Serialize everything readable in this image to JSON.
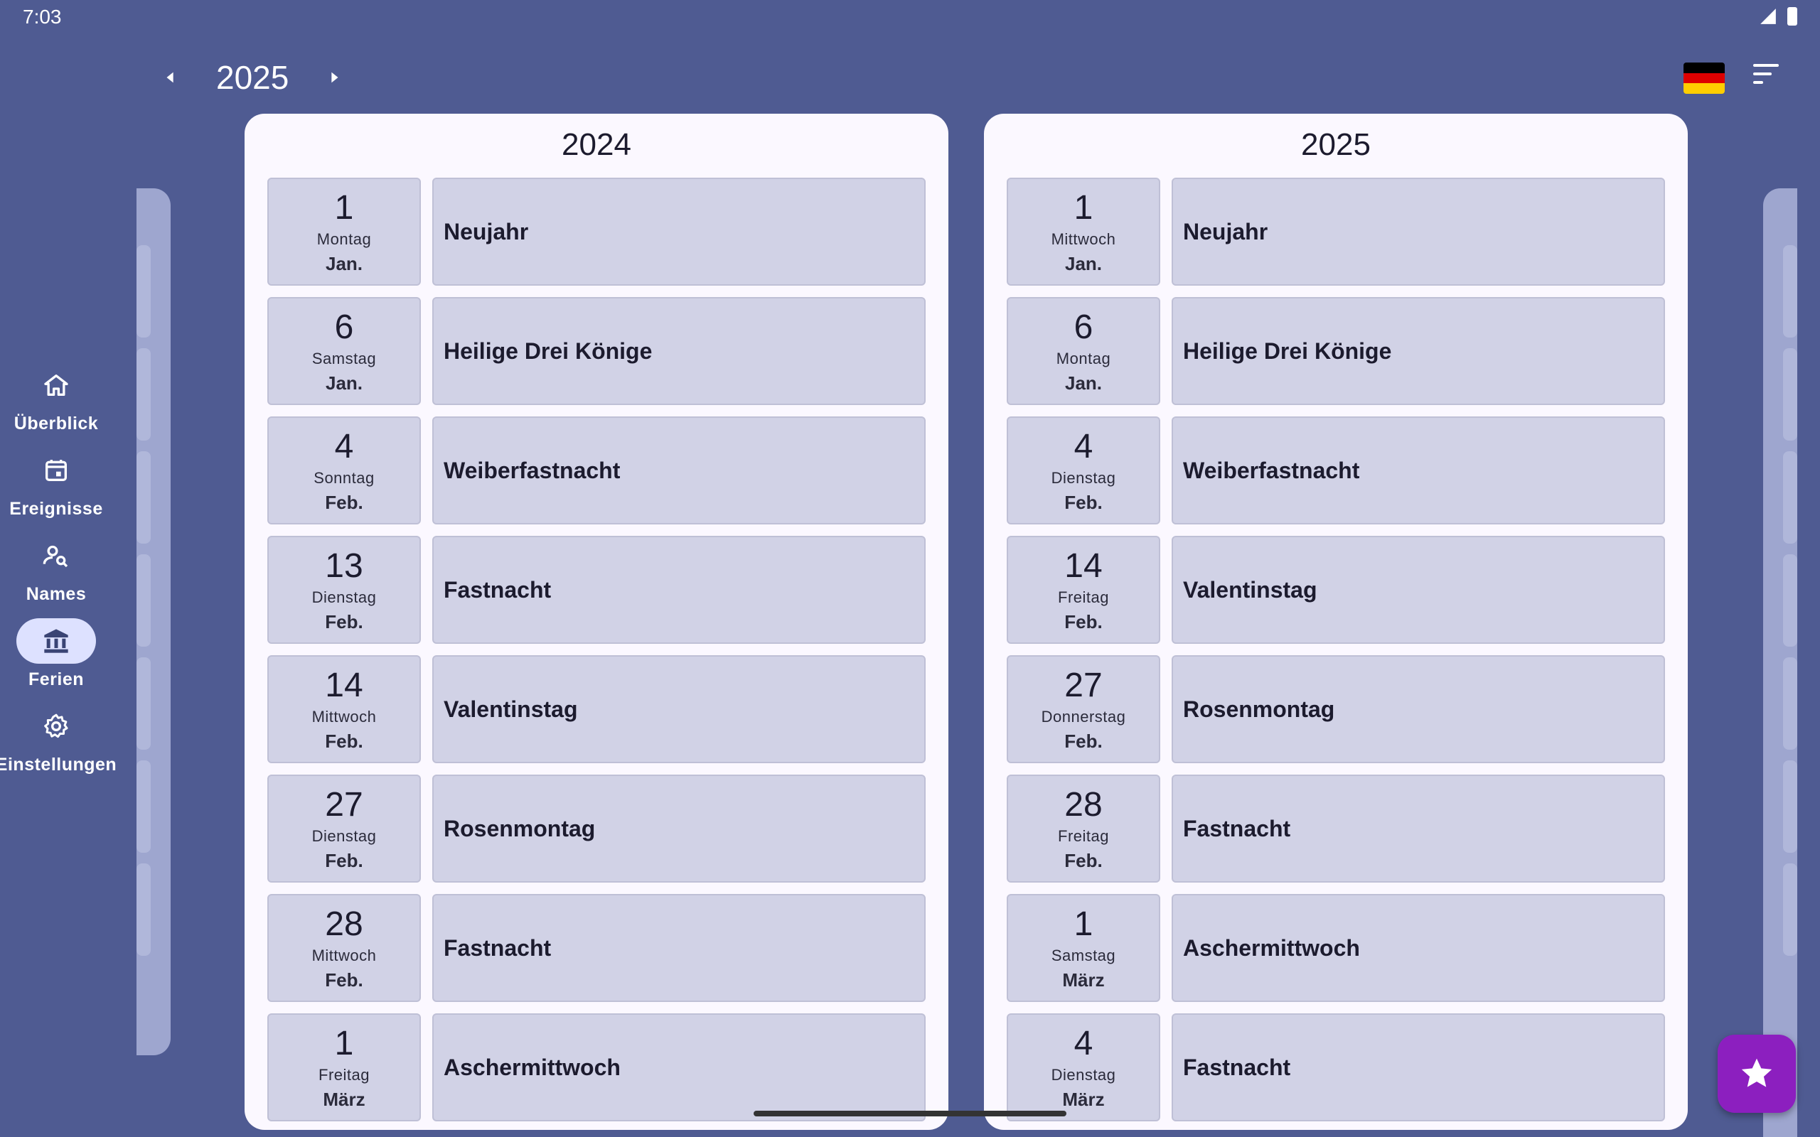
{
  "status_bar": {
    "time": "7:03"
  },
  "header": {
    "year": "2025"
  },
  "nav_rail": {
    "items": [
      {
        "label": "Überblick",
        "icon": "home-icon",
        "active": false
      },
      {
        "label": "Ereignisse",
        "icon": "calendar-icon",
        "active": false
      },
      {
        "label": "Names",
        "icon": "person-search-icon",
        "active": false
      },
      {
        "label": "Ferien",
        "icon": "bank-icon",
        "active": true
      },
      {
        "label": "Einstellungen",
        "icon": "gear-icon",
        "active": false
      }
    ]
  },
  "panels": [
    {
      "title": "2024",
      "rows": [
        {
          "day": "1",
          "weekday": "Montag",
          "month": "Jan.",
          "name": "Neujahr"
        },
        {
          "day": "6",
          "weekday": "Samstag",
          "month": "Jan.",
          "name": "Heilige Drei Könige"
        },
        {
          "day": "4",
          "weekday": "Sonntag",
          "month": "Feb.",
          "name": "Weiberfastnacht"
        },
        {
          "day": "13",
          "weekday": "Dienstag",
          "month": "Feb.",
          "name": "Fastnacht"
        },
        {
          "day": "14",
          "weekday": "Mittwoch",
          "month": "Feb.",
          "name": "Valentinstag"
        },
        {
          "day": "27",
          "weekday": "Dienstag",
          "month": "Feb.",
          "name": "Rosenmontag"
        },
        {
          "day": "28",
          "weekday": "Mittwoch",
          "month": "Feb.",
          "name": "Fastnacht"
        },
        {
          "day": "1",
          "weekday": "Freitag",
          "month": "März",
          "name": "Aschermittwoch"
        }
      ]
    },
    {
      "title": "2025",
      "rows": [
        {
          "day": "1",
          "weekday": "Mittwoch",
          "month": "Jan.",
          "name": "Neujahr"
        },
        {
          "day": "6",
          "weekday": "Montag",
          "month": "Jan.",
          "name": "Heilige Drei Könige"
        },
        {
          "day": "4",
          "weekday": "Dienstag",
          "month": "Feb.",
          "name": "Weiberfastnacht"
        },
        {
          "day": "14",
          "weekday": "Freitag",
          "month": "Feb.",
          "name": "Valentinstag"
        },
        {
          "day": "27",
          "weekday": "Donnerstag",
          "month": "Feb.",
          "name": "Rosenmontag"
        },
        {
          "day": "28",
          "weekday": "Freitag",
          "month": "Feb.",
          "name": "Fastnacht"
        },
        {
          "day": "1",
          "weekday": "Samstag",
          "month": "März",
          "name": "Aschermittwoch"
        },
        {
          "day": "4",
          "weekday": "Dienstag",
          "month": "März",
          "name": "Fastnacht"
        }
      ]
    }
  ],
  "colors": {
    "background": "#4f5b92",
    "panel": "#fbf8ff",
    "card": "#d1d2e6",
    "rail_active": "#dde1ff",
    "fab": "#8c1fbf",
    "flag": [
      "#000000",
      "#dd0000",
      "#ffce00"
    ]
  },
  "fab": {
    "icon": "star-icon"
  }
}
